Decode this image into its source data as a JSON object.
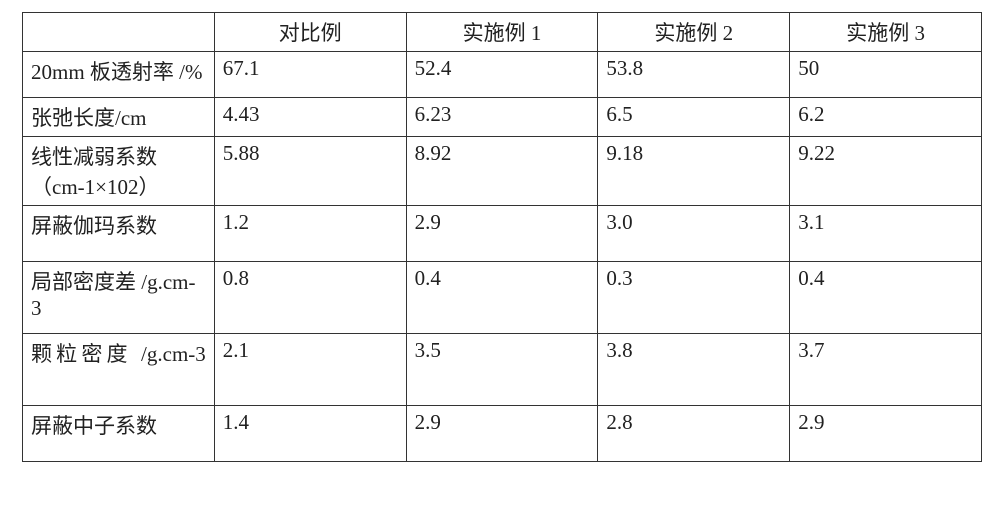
{
  "table": {
    "type": "table",
    "background_color": "#ffffff",
    "border_color": "#333333",
    "text_color": "#212121",
    "font_family": "SimSun",
    "header_fontsize_pt": 16,
    "cell_fontsize_pt": 16,
    "column_widths_pct": [
      20,
      20,
      20,
      20,
      20
    ],
    "column_alignment": [
      "left",
      "left",
      "left",
      "left",
      "left"
    ],
    "header_alignment": "center",
    "corner": "",
    "columns": [
      "对比例",
      "实施例 1",
      "实施例 2",
      "实施例 3"
    ],
    "rows": [
      {
        "label": "20mm 板透射率 /%",
        "values": [
          "67.1",
          "52.4",
          "53.8",
          "50"
        ]
      },
      {
        "label": "张弛长度/cm",
        "values": [
          "4.43",
          "6.23",
          "6.5",
          "6.2"
        ]
      },
      {
        "label": "线性减弱系数 （cm-1×102）",
        "values": [
          "5.88",
          "8.92",
          "9.18",
          "9.22"
        ]
      },
      {
        "label": "屏蔽伽玛系数",
        "values": [
          "1.2",
          "2.9",
          "3.0",
          "3.1"
        ]
      },
      {
        "label": "局部密度差 /g.cm-3",
        "values": [
          "0.8",
          "0.4",
          "0.3",
          "0.4"
        ]
      },
      {
        "label": "颗粒密度 /g.cm-3",
        "values": [
          "2.1",
          "3.5",
          "3.8",
          "3.7"
        ]
      },
      {
        "label": "屏蔽中子系数",
        "values": [
          "1.4",
          "2.9",
          "2.8",
          "2.9"
        ]
      }
    ]
  }
}
